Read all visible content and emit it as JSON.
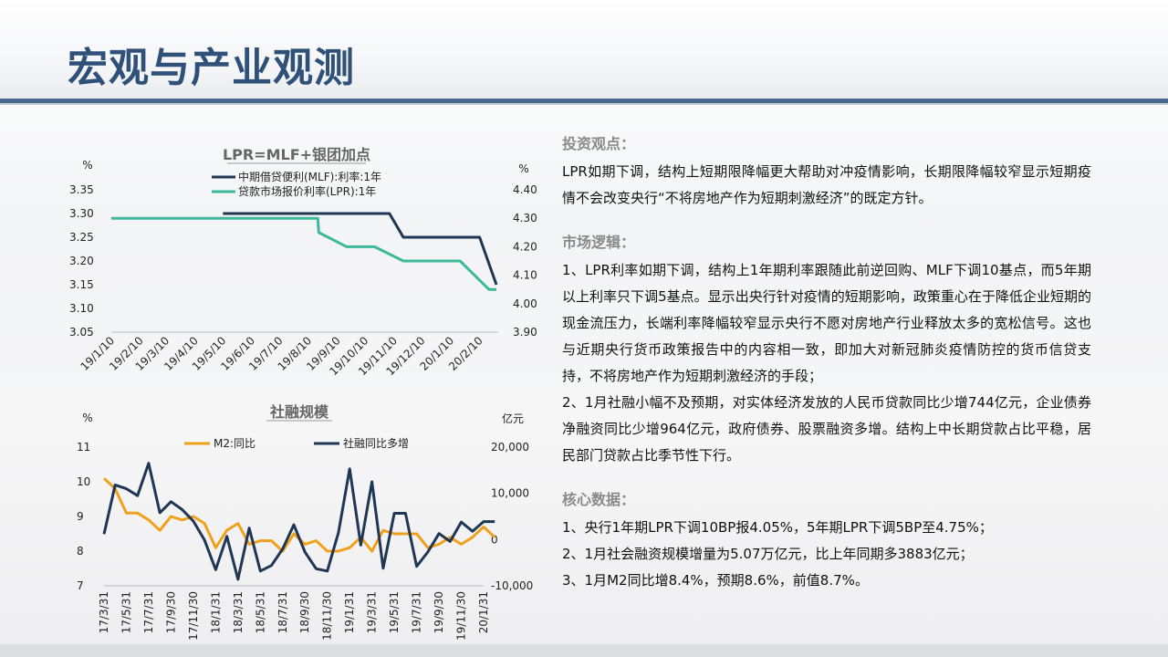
{
  "page": {
    "title": "宏观与产业观测"
  },
  "sections": [
    {
      "heading": "投资观点：",
      "paragraphs": [
        "LPR如期下调，结构上短期限降幅更大帮助对冲疫情影响，长期限降幅较窄显示短期疫情不会改变央行“不将房地产作为短期刺激经济”的既定方针。"
      ]
    },
    {
      "heading": "市场逻辑：",
      "paragraphs": [
        "1、LPR利率如期下调，结构上1年期利率跟随此前逆回购、MLF下调10基点，而5年期以上利率只下调5基点。显示出央行针对疫情的短期影响，政策重心在于降低企业短期的现金流压力，长端利率降幅较窄显示央行不愿对房地产行业释放太多的宽松信号。这也与近期央行货币政策报告中的内容相一致，即加大对新冠肺炎疫情防控的货币信贷支持，不将房地产作为短期刺激经济的手段；",
        "2、1月社融小幅不及预期，对实体经济发放的人民币贷款同比少增744亿元，企业债券净融资同比少增964亿元，政府债券、股票融资多增。结构上中长期贷款占比平稳，居民部门贷款占比季节性下行。"
      ]
    },
    {
      "heading": "核心数据：",
      "paragraphs": [
        "1、央行1年期LPR下调10BP报4.05%，5年期LPR下调5BP至4.75%；",
        "2、1月社会融资规模增量为5.07万亿元，比上年同期多3883亿元；",
        "3、1月M2同比增8.4%，预期8.6%，前值8.7%。"
      ]
    }
  ],
  "chart_data": [
    {
      "type": "line",
      "title": "LPR=MLF+银团加点",
      "left_unit": "%",
      "right_unit": "%",
      "ylim_left": [
        3.05,
        3.35
      ],
      "yticks_left": [
        "3.35",
        "3.30",
        "3.25",
        "3.20",
        "3.15",
        "3.10",
        "3.05"
      ],
      "ylim_right": [
        3.9,
        4.4
      ],
      "yticks_right": [
        "4.40",
        "4.30",
        "4.20",
        "4.10",
        "4.00",
        "3.90"
      ],
      "x_range": [
        "2019-01-10",
        "2020-03-01"
      ],
      "xticks": [
        "19/1/10",
        "19/2/10",
        "19/3/10",
        "19/4/10",
        "19/5/10",
        "19/6/10",
        "19/7/10",
        "19/8/10",
        "19/9/10",
        "19/10/10",
        "19/11/10",
        "19/12/10",
        "20/1/10",
        "20/2/10"
      ],
      "legend_position": "top",
      "series": [
        {
          "name": "中期借贷便利(MLF):利率:1年",
          "axis": "left",
          "color": "#1f3654",
          "points": [
            [
              "2019-05-10",
              3.3
            ],
            [
              "2019-11-05",
              3.3
            ],
            [
              "2019-11-20",
              3.25
            ],
            [
              "2020-02-10",
              3.25
            ],
            [
              "2020-02-28",
              3.15
            ]
          ]
        },
        {
          "name": "贷款市场报价利率(LPR):1年",
          "axis": "right",
          "color": "#3cb89a",
          "points": [
            [
              "2019-01-10",
              4.3
            ],
            [
              "2019-08-20",
              4.3
            ],
            [
              "2019-08-21",
              4.25
            ],
            [
              "2019-09-20",
              4.2
            ],
            [
              "2019-10-20",
              4.2
            ],
            [
              "2019-11-20",
              4.15
            ],
            [
              "2020-01-20",
              4.15
            ],
            [
              "2020-02-20",
              4.05
            ],
            [
              "2020-02-28",
              4.05
            ]
          ]
        }
      ]
    },
    {
      "type": "line",
      "title": "社融规模",
      "left_unit": "%",
      "right_unit": "亿元",
      "ylim_left": [
        7,
        11
      ],
      "yticks_left": [
        "11",
        "10",
        "9",
        "8",
        "7"
      ],
      "ylim_right": [
        -10000,
        20000
      ],
      "yticks_right": [
        "20,000",
        "10,000",
        "0",
        "-10,000"
      ],
      "x_start": "2017-03",
      "x_end": "2020-01",
      "xticks": [
        "17/3/31",
        "17/5/31",
        "17/7/31",
        "17/9/30",
        "17/11/30",
        "18/1/31",
        "18/3/31",
        "18/5/31",
        "18/7/31",
        "18/9/30",
        "18/11/30",
        "19/1/31",
        "19/3/31",
        "19/5/31",
        "19/7/31",
        "19/9/30",
        "19/11/30",
        "20/1/31"
      ],
      "legend_position": "top",
      "series": [
        {
          "name": "M2:同比",
          "axis": "left",
          "color": "#f0a11c",
          "values": [
            10.1,
            9.8,
            9.1,
            9.1,
            8.9,
            8.6,
            9.0,
            8.9,
            9.0,
            8.8,
            8.1,
            8.6,
            8.8,
            8.2,
            8.3,
            8.3,
            8.0,
            8.5,
            8.2,
            8.3,
            8.0,
            8.0,
            8.1,
            8.4,
            8.0,
            8.6,
            8.5,
            8.5,
            8.5,
            8.1,
            8.2,
            8.4,
            8.2,
            8.4,
            8.7,
            8.4
          ]
        },
        {
          "name": "社融同比多增",
          "axis": "right",
          "color": "#1f3654",
          "values": [
            1200,
            11800,
            11000,
            9500,
            16500,
            5800,
            8200,
            6500,
            4000,
            -100,
            -6500,
            700,
            -8600,
            2500,
            -6800,
            -5600,
            -2000,
            3200,
            -2700,
            -6300,
            -6800,
            1500,
            15300,
            -1200,
            12500,
            -6200,
            5700,
            5700,
            -5800,
            -2700,
            1300,
            -400,
            3800,
            1800,
            3900,
            3900
          ]
        }
      ]
    }
  ]
}
